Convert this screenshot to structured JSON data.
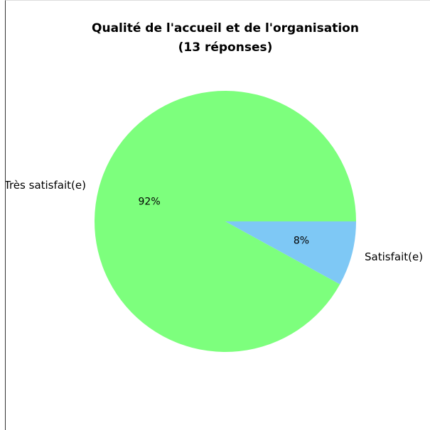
{
  "chart_data": {
    "type": "pie",
    "title": [
      "Qualité de l'accueil et de l'organisation",
      "(13 réponses)"
    ],
    "categories": [
      "Très satisfait(e)",
      "Satisfait(e)"
    ],
    "values": [
      92,
      8
    ],
    "value_labels": [
      "92%",
      "8%"
    ],
    "colors": [
      "#7dff7d",
      "#7ec8f5"
    ]
  }
}
